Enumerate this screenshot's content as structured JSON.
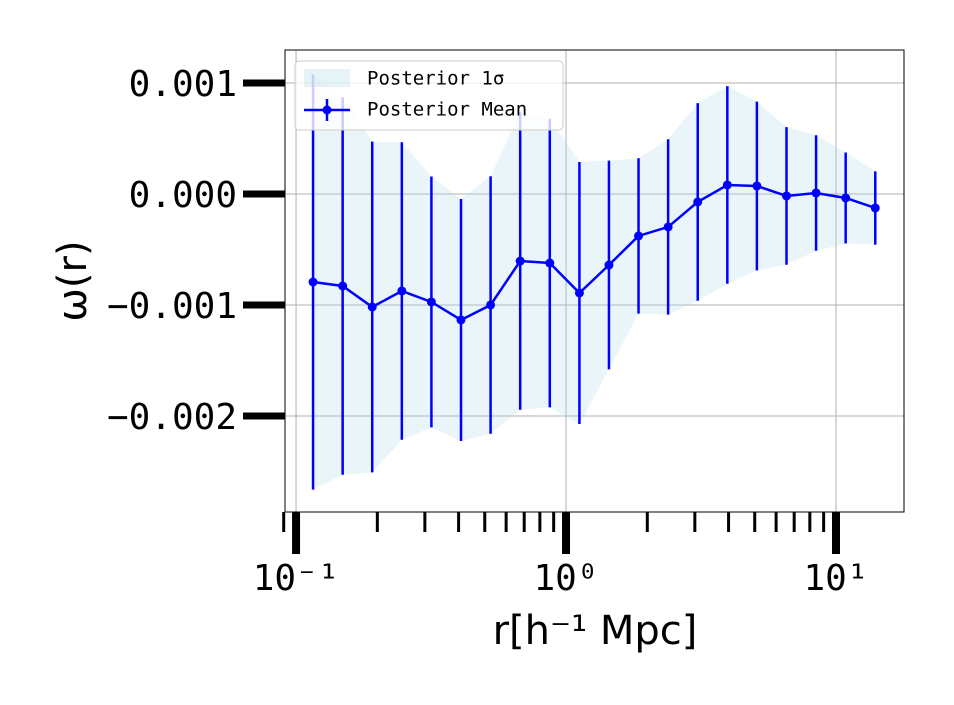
{
  "chart_data": {
    "type": "errorbar",
    "xlabel": "r[h⁻¹ Mpc]",
    "ylabel": "ω(r)",
    "xscale": "log",
    "grid": true,
    "legend": "upper left",
    "x": [
      0.1156,
      0.1488,
      0.1915,
      0.2465,
      0.3172,
      0.4083,
      0.5255,
      0.6764,
      0.8707,
      1.121,
      1.442,
      1.856,
      2.389,
      3.075,
      3.958,
      5.093,
      6.556,
      8.437,
      10.86,
      13.98
    ],
    "series": [
      {
        "name": "Posterior Mean",
        "color": "#0000ff",
        "band_name": "Posterior 1σ",
        "band_color": "#add8e6",
        "values": [
          -0.000793,
          -0.000829,
          -0.001018,
          -0.000874,
          -0.000973,
          -0.001135,
          -0.001,
          -0.000604,
          -0.000622,
          -0.000892,
          -0.00064,
          -0.000378,
          -0.000297,
          -7.2e-05,
          8.1e-05,
          7.2e-05,
          -1.8e-05,
          9e-06,
          -3.6e-05,
          -0.000126
        ],
        "error": [
          0.00187,
          0.0017,
          0.00149,
          0.00134,
          0.00113,
          0.00109,
          0.00116,
          0.00134,
          0.0013,
          0.00118,
          0.00094,
          0.0007,
          0.00079,
          0.00089,
          0.00089,
          0.00076,
          0.00062,
          0.00052,
          0.00041,
          0.00033
        ]
      }
    ],
    "xlim": [
      0.091,
      17.86
    ],
    "ylim": [
      -0.002865,
      0.001297
    ],
    "xticks": [
      {
        "value": 0.1,
        "label": "10⁻¹"
      },
      {
        "value": 1,
        "label": "10⁰"
      },
      {
        "value": 10,
        "label": "10¹"
      }
    ],
    "xminorticks": [
      0.09,
      0.2,
      0.3,
      0.4,
      0.5,
      0.6,
      0.7,
      0.8,
      0.9,
      2,
      3,
      4,
      5,
      6,
      7,
      8,
      9
    ],
    "yticks": [
      {
        "value": -0.002,
        "label": "−0.002"
      },
      {
        "value": -0.001,
        "label": "−0.001"
      },
      {
        "value": 0,
        "label": "0.000"
      },
      {
        "value": 0.001,
        "label": "0.001"
      }
    ]
  }
}
